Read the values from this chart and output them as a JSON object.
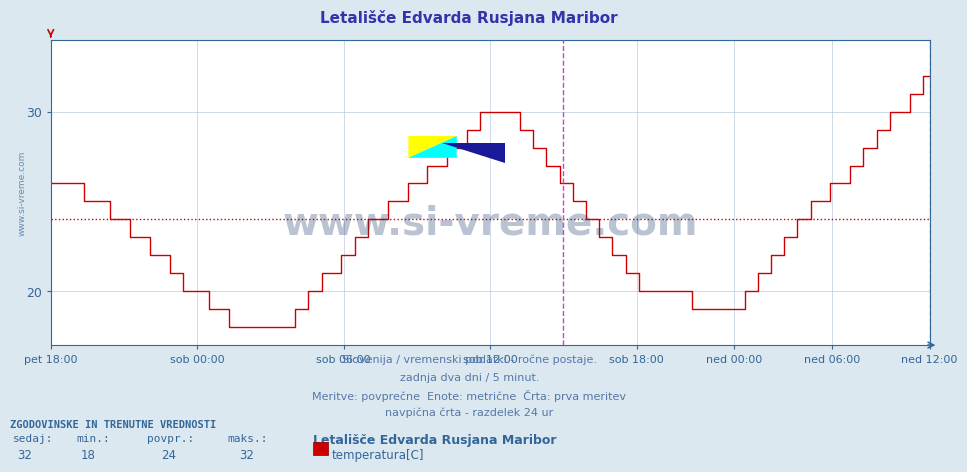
{
  "title": "Letališče Edvarda Rusjana Maribor",
  "title_color": "#3333aa",
  "bg_color": "#dce8f0",
  "plot_bg_color": "#ffffff",
  "grid_color": "#bbccdd",
  "line_color": "#cc0000",
  "avg_line_color": "#cc0000",
  "avg_line_y": 24,
  "vline_color": "#cc44cc",
  "vline_x_sob18": 0.5833,
  "ylim_min": 17,
  "ylim_max": 34,
  "yticks": [
    20,
    30
  ],
  "tick_color": "#336699",
  "x_labels": [
    "pet 18:00",
    "sob 00:00",
    "sob 06:00",
    "sob 12:00",
    "sob 18:00",
    "ned 00:00",
    "ned 06:00",
    "ned 12:00"
  ],
  "x_positions": [
    0.0,
    0.1667,
    0.3333,
    0.5,
    0.6667,
    0.7778,
    0.8889,
    1.0
  ],
  "footer_line1": "Slovenija / vremenski podatki - ročne postaje.",
  "footer_line2": "zadnja dva dni / 5 minut.",
  "footer_line3": "Meritve: povprečne  Enote: metrične  Črta: prva meritev",
  "footer_line4": "navpična črta - razdelek 24 ur",
  "footer_color": "#5577aa",
  "stats_header": "ZGODOVINSKE IN TRENUTNE VREDNOSTI",
  "stats_sedaj_lbl": "sedaj:",
  "stats_min_lbl": "min.:",
  "stats_povpr_lbl": "povpr.:",
  "stats_maks_lbl": "maks.:",
  "stats_sedaj_val": "32",
  "stats_min_val": "18",
  "stats_povpr_val": "24",
  "stats_maks_val": "32",
  "station_name": "Letališče Edvarda Rusjana Maribor",
  "legend_label": "temperatura[C]",
  "watermark_text": "www.si-vreme.com",
  "watermark_color": "#1a3a6a",
  "sidewater_text": "www.si-vreme.com",
  "temp_data": [
    26,
    26,
    26,
    26,
    26,
    25,
    25,
    25,
    25,
    24,
    24,
    24,
    23,
    23,
    23,
    22,
    22,
    22,
    21,
    21,
    20,
    20,
    20,
    20,
    19,
    19,
    19,
    18,
    18,
    18,
    18,
    18,
    18,
    18,
    18,
    18,
    18,
    19,
    19,
    20,
    20,
    21,
    21,
    21,
    22,
    22,
    23,
    23,
    24,
    24,
    24,
    25,
    25,
    25,
    26,
    26,
    26,
    27,
    27,
    27,
    28,
    28,
    28,
    29,
    29,
    30,
    30,
    30,
    30,
    30,
    30,
    29,
    29,
    28,
    28,
    27,
    27,
    26,
    26,
    25,
    25,
    24,
    24,
    23,
    23,
    22,
    22,
    21,
    21,
    20,
    20,
    20,
    20,
    20,
    20,
    20,
    20,
    19,
    19,
    19,
    19,
    19,
    19,
    19,
    19,
    20,
    20,
    21,
    21,
    22,
    22,
    23,
    23,
    24,
    24,
    25,
    25,
    25,
    26,
    26,
    26,
    27,
    27,
    28,
    28,
    29,
    29,
    30,
    30,
    30,
    31,
    31,
    32,
    32
  ]
}
